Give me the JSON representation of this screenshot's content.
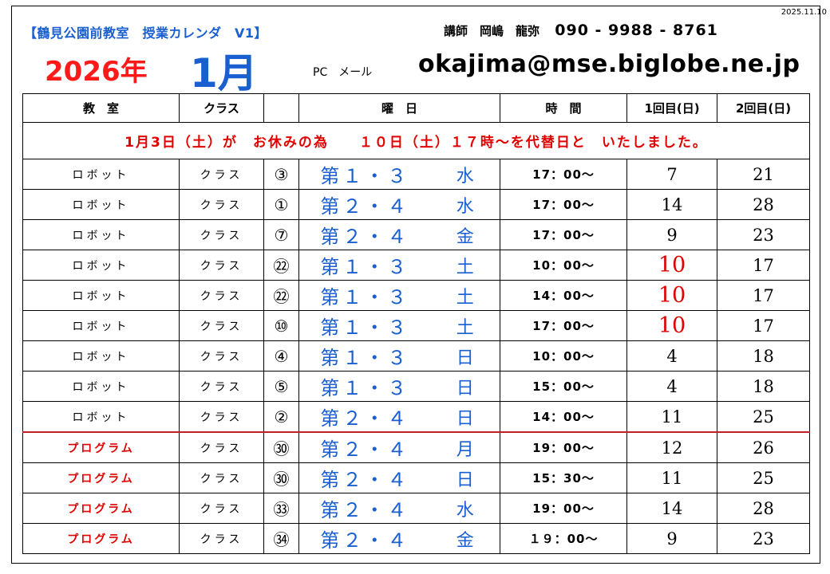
{
  "header": {
    "date": "2025.11.10",
    "school": "【鶴見公園前教室　授業カレンダ　V1】",
    "instructor_label": "講師　岡嶋　龍弥",
    "phone": "090 - 9988 - 8761",
    "year": "2026年",
    "month": "1月",
    "pc_mail_label": "PC　メール",
    "email": "okajima@mse.biglobe.ne.jp"
  },
  "table": {
    "headers": [
      "教　室",
      "クラス",
      "",
      "曜　日",
      "時　間",
      "1回目(日)",
      "2回目(日)"
    ],
    "notice": "1月3日（土）が　お休みの為　　１０日（土）１７時～を代替日と　いたしました。",
    "rows": [
      {
        "room": "ロボット",
        "cls": "クラス",
        "num": "③",
        "week": "第１・３",
        "day": "水",
        "time": "17：00～",
        "d1": "7",
        "d2": "21"
      },
      {
        "room": "ロボット",
        "cls": "クラス",
        "num": "①",
        "week": "第２・４",
        "day": "水",
        "time": "17：00～",
        "d1": "14",
        "d2": "28"
      },
      {
        "room": "ロボット",
        "cls": "クラス",
        "num": "⑦",
        "week": "第２・４",
        "day": "金",
        "time": "17：00～",
        "d1": "9",
        "d2": "23"
      },
      {
        "room": "ロボット",
        "cls": "クラス",
        "num": "㉒",
        "week": "第１・３",
        "day": "土",
        "time": "10：00～",
        "d1": "10",
        "d2": "17"
      },
      {
        "room": "ロボット",
        "cls": "クラス",
        "num": "㉒",
        "week": "第１・３",
        "day": "土",
        "time": "14：00～",
        "d1": "10",
        "d2": "17"
      },
      {
        "room": "ロボット",
        "cls": "クラス",
        "num": "⑩",
        "week": "第１・３",
        "day": "土",
        "time": "17：00～",
        "d1": "10",
        "d2": "17"
      },
      {
        "room": "ロボット",
        "cls": "クラス",
        "num": "④",
        "week": "第１・３",
        "day": "日",
        "time": "10：00～",
        "d1": "4",
        "d2": "18"
      },
      {
        "room": "ロボット",
        "cls": "クラス",
        "num": "⑤",
        "week": "第１・３",
        "day": "日",
        "time": "15：00～",
        "d1": "4",
        "d2": "18"
      },
      {
        "room": "ロボット",
        "cls": "クラス",
        "num": "②",
        "week": "第２・４",
        "day": "日",
        "time": "14：00～",
        "d1": "11",
        "d2": "25"
      },
      {
        "room": "プログラム",
        "cls": "クラス",
        "num": "㉚",
        "week": "第２・４",
        "day": "月",
        "time": "19：00～",
        "d1": "12",
        "d2": "26"
      },
      {
        "room": "プログラム",
        "cls": "クラス",
        "num": "㉚",
        "week": "第２・４",
        "day": "日",
        "time": "15：30～",
        "d1": "11",
        "d2": "25"
      },
      {
        "room": "プログラム",
        "cls": "クラス",
        "num": "㉝",
        "week": "第２・４",
        "day": "水",
        "time": "19：00～",
        "d1": "14",
        "d2": "28"
      },
      {
        "room": "プログラム",
        "cls": "クラス",
        "num": "㉞",
        "week": "第２・４",
        "day": "金",
        "time": "１９：00～",
        "d1": "9",
        "d2": "23"
      }
    ]
  }
}
